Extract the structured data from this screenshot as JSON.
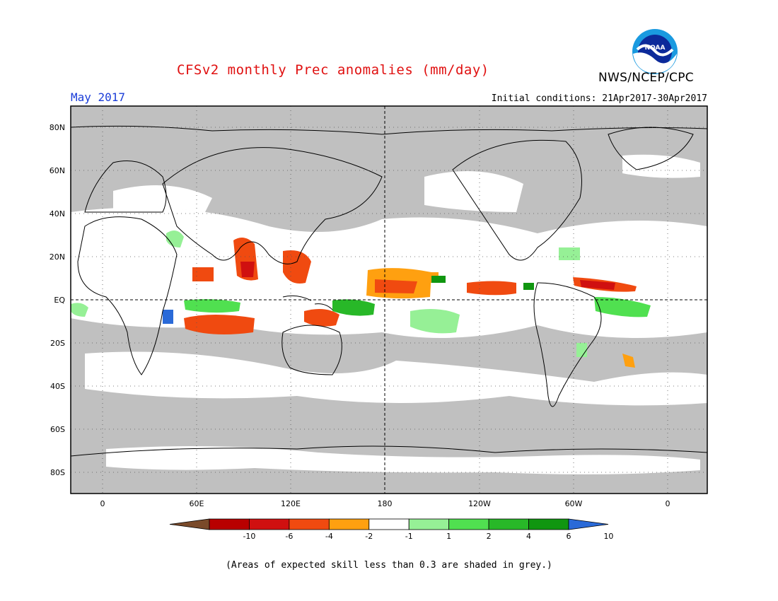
{
  "header": {
    "title": "CFSv2 monthly Prec anomalies (mm/day)",
    "agency": "NWS/NCEP/CPC",
    "logo_text": "NOAA",
    "month": "May 2017",
    "initial_conditions": "Initial conditions: 21Apr2017-30Apr2017"
  },
  "map": {
    "lat_labels": [
      "80N",
      "60N",
      "40N",
      "20N",
      "EQ",
      "20S",
      "40S",
      "60S",
      "80S"
    ],
    "lon_labels": [
      "0",
      "60E",
      "120E",
      "180",
      "120W",
      "60W",
      "0"
    ],
    "land_color": "#c0c0c0",
    "skill_mask_color": "#c0c0c0"
  },
  "colorbar": {
    "labels": [
      "-10",
      "-6",
      "-4",
      "-2",
      "-1",
      "1",
      "2",
      "4",
      "6",
      "10"
    ],
    "colors": [
      "#7a4a2a",
      "#b80000",
      "#d01010",
      "#f04a10",
      "#ffa010",
      "#ffffff",
      "#96f096",
      "#50e050",
      "#28b828",
      "#109610",
      "#2a6ad8"
    ]
  },
  "footnote": "(Areas of expected skill less than 0.3 are shaded in grey.)"
}
